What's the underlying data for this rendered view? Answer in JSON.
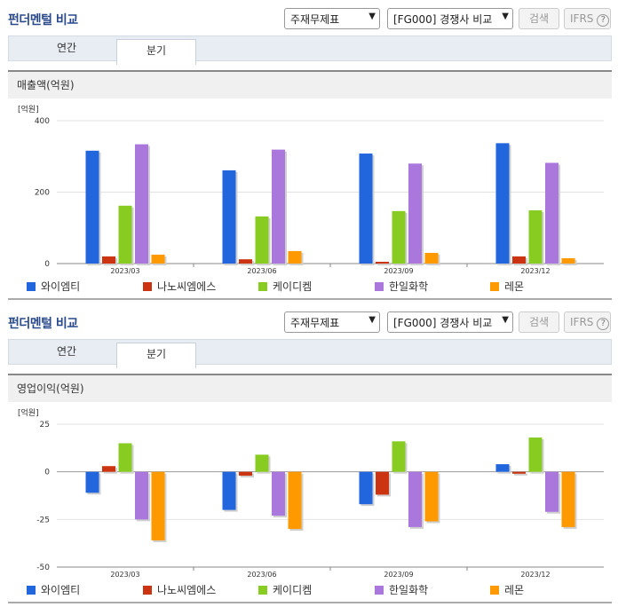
{
  "panels": [
    {
      "title": "펀더멘털 비교",
      "select1": "주재무제표",
      "select2": "[FG000] 경쟁사 비교",
      "search_label": "검색",
      "ifrs_label": "IFRS",
      "tabs": [
        "연간",
        "분기"
      ],
      "active_tab": 1,
      "section_title": "매출액(억원)"
    },
    {
      "title": "펀더멘털 비교",
      "select1": "주재무제표",
      "select2": "[FG000] 경쟁사 비교",
      "search_label": "검색",
      "ifrs_label": "IFRS",
      "tabs": [
        "연간",
        "분기"
      ],
      "active_tab": 1,
      "section_title": "영업이익(억원)"
    }
  ],
  "chart_data": [
    {
      "type": "bar",
      "unit_label": "[억원]",
      "categories": [
        "2023/03",
        "2023/06",
        "2023/09",
        "2023/12"
      ],
      "ylim": [
        0,
        400
      ],
      "yticks": [
        0,
        200,
        400
      ],
      "series": [
        {
          "name": "와이엠티",
          "color": "#2266dd",
          "values": [
            316,
            261,
            308,
            337
          ]
        },
        {
          "name": "나노씨엠에스",
          "color": "#cc3311",
          "values": [
            20,
            12,
            5,
            20
          ]
        },
        {
          "name": "케이디켐",
          "color": "#88cc22",
          "values": [
            162,
            132,
            147,
            149
          ]
        },
        {
          "name": "한일화학",
          "color": "#aa77dd",
          "values": [
            334,
            319,
            280,
            282
          ]
        },
        {
          "name": "레몬",
          "color": "#ff9900",
          "values": [
            25,
            35,
            30,
            15
          ]
        }
      ]
    },
    {
      "type": "bar",
      "unit_label": "[억원]",
      "categories": [
        "2023/03",
        "2023/06",
        "2023/09",
        "2023/12"
      ],
      "ylim": [
        -50,
        25
      ],
      "yticks": [
        -50,
        -25,
        0,
        25
      ],
      "series": [
        {
          "name": "와이엠티",
          "color": "#2266dd",
          "values": [
            -11,
            -20,
            -17,
            4
          ]
        },
        {
          "name": "나노씨엠에스",
          "color": "#cc3311",
          "values": [
            3,
            -2,
            -12,
            -1
          ]
        },
        {
          "name": "케이디켐",
          "color": "#88cc22",
          "values": [
            15,
            9,
            16,
            18
          ]
        },
        {
          "name": "한일화학",
          "color": "#aa77dd",
          "values": [
            -25,
            -23,
            -29,
            -21
          ]
        },
        {
          "name": "레몬",
          "color": "#ff9900",
          "values": [
            -36,
            -30,
            -26,
            -29
          ]
        }
      ]
    }
  ]
}
